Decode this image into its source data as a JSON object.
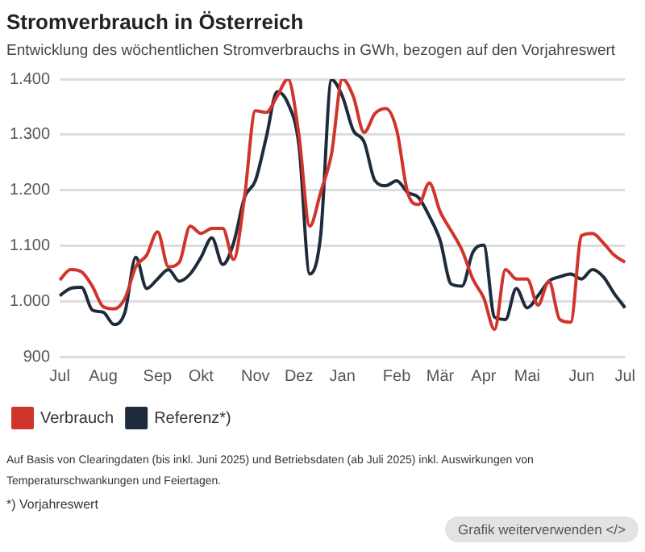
{
  "chart_data": {
    "type": "line",
    "title": "Stromverbrauch in Österreich",
    "subtitle": "Entwicklung des wöchentlichen Stromverbrauchs in GWh, bezogen auf den Vorjahreswert",
    "categories": [
      "Jul",
      null,
      null,
      null,
      "Aug",
      null,
      null,
      null,
      null,
      "Sep",
      null,
      null,
      null,
      "Okt",
      null,
      null,
      null,
      null,
      "Nov",
      null,
      null,
      null,
      "Dez",
      null,
      null,
      null,
      "Jan",
      null,
      null,
      null,
      null,
      "Feb",
      null,
      null,
      null,
      "Mär",
      null,
      null,
      null,
      "Apr",
      null,
      null,
      null,
      "Mai",
      null,
      null,
      null,
      null,
      "Jun",
      null,
      null,
      null,
      "Jul"
    ],
    "series": [
      {
        "name": "Verbrauch",
        "color": "#d0352c",
        "values": [
          1038,
          1057,
          1053,
          1027,
          990,
          986,
          1005,
          1062,
          1083,
          1125,
          1062,
          1070,
          1135,
          1122,
          1131,
          1131,
          1075,
          1187,
          1343,
          1340,
          1369,
          1400,
          1300,
          1135,
          1196,
          1265,
          1400,
          1369,
          1304,
          1338,
          1347,
          1308,
          1196,
          1174,
          1213,
          1161,
          1127,
          1092,
          1040,
          1006,
          949,
          1057,
          1040,
          1040,
          993,
          1036,
          967,
          962,
          1118,
          1122,
          1105,
          1083,
          1070
        ]
      },
      {
        "name": "Referenz*)",
        "color": "#1e2b3a",
        "values": [
          1010,
          1023,
          1025,
          984,
          980,
          958,
          980,
          1079,
          1023,
          1040,
          1057,
          1036,
          1049,
          1079,
          1114,
          1066,
          1105,
          1187,
          1217,
          1295,
          1377,
          1356,
          1282,
          1049,
          1118,
          1399,
          1369,
          1308,
          1287,
          1217,
          1208,
          1217,
          1196,
          1187,
          1153,
          1109,
          1031,
          1027,
          1088,
          1101,
          971,
          967,
          1023,
          988,
          1010,
          1036,
          1044,
          1049,
          1040,
          1057,
          1044,
          1014,
          988
        ]
      }
    ],
    "ylim": [
      900,
      1400
    ],
    "yticks": [
      900,
      {
        "value": 1000,
        "label": "1.000"
      },
      {
        "value": 1100,
        "label": "1.100"
      },
      {
        "value": 1200,
        "label": "1.200"
      },
      {
        "value": 1300,
        "label": "1.300"
      },
      {
        "value": 1400,
        "label": "1.400"
      }
    ],
    "grid": "y",
    "legend": "bottom left",
    "marker": "none",
    "line_style": "solid",
    "annotations": [
      "Auf Basis von Clearingdaten (bis inkl. Juni 2025) und Betriebsdaten (ab Juli 2025) inkl. Auswirkungen von Temperaturschwankungen und Feiertagen.",
      "*) Vorjahreswert",
      "Grafik weiterverwenden </>"
    ]
  }
}
